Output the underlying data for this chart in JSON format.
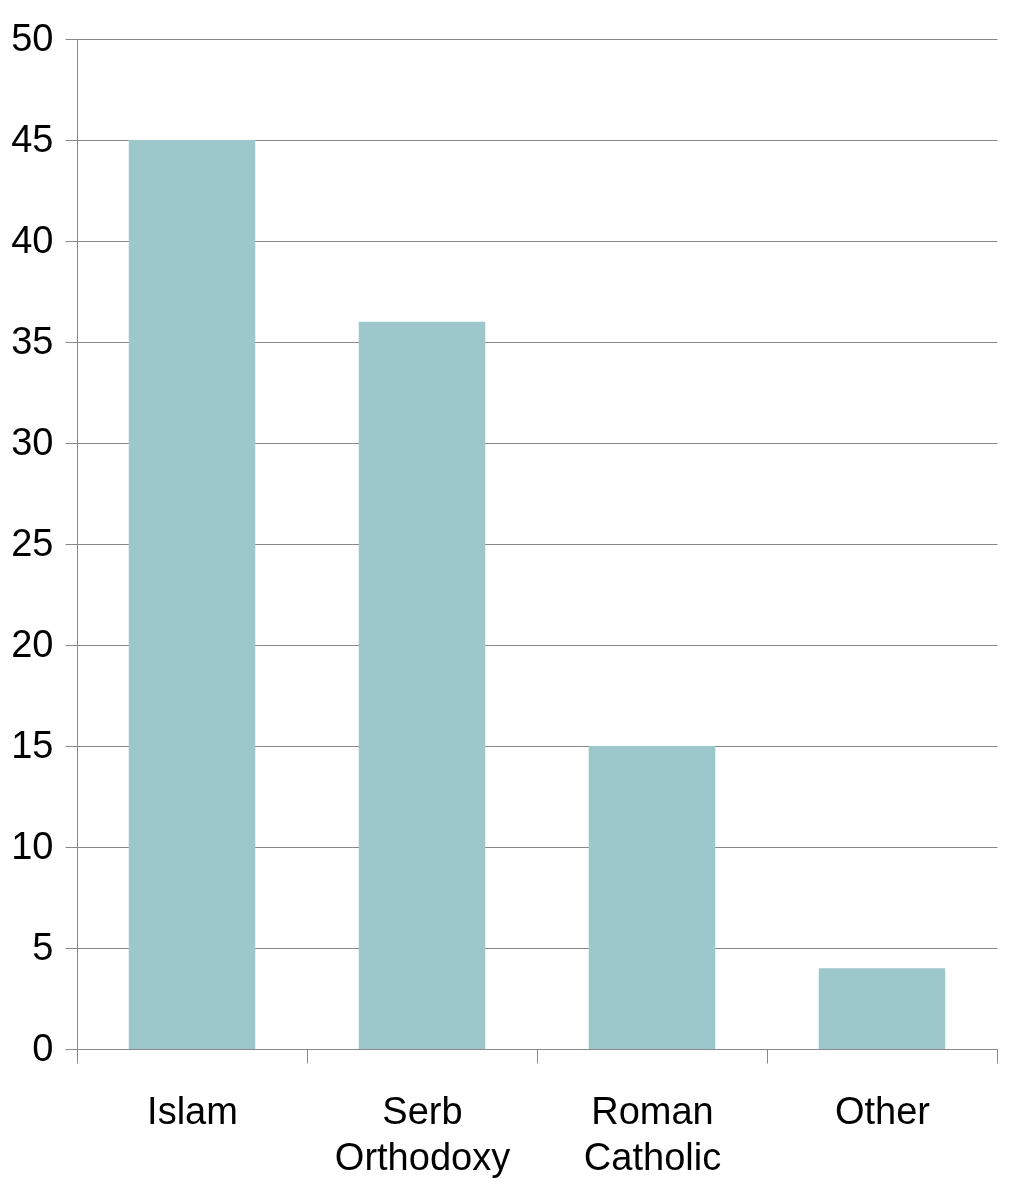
{
  "chart_data": {
    "type": "bar",
    "categories": [
      "Islam",
      "Serb Orthodoxy",
      "Roman Catholic",
      "Other"
    ],
    "values": [
      45,
      36,
      15,
      4
    ],
    "color": "#9cc8cc",
    "ylim": [
      0,
      50
    ],
    "yticks": [
      0,
      5,
      10,
      15,
      20,
      25,
      30,
      35,
      40,
      45,
      50
    ],
    "grid": "y"
  }
}
